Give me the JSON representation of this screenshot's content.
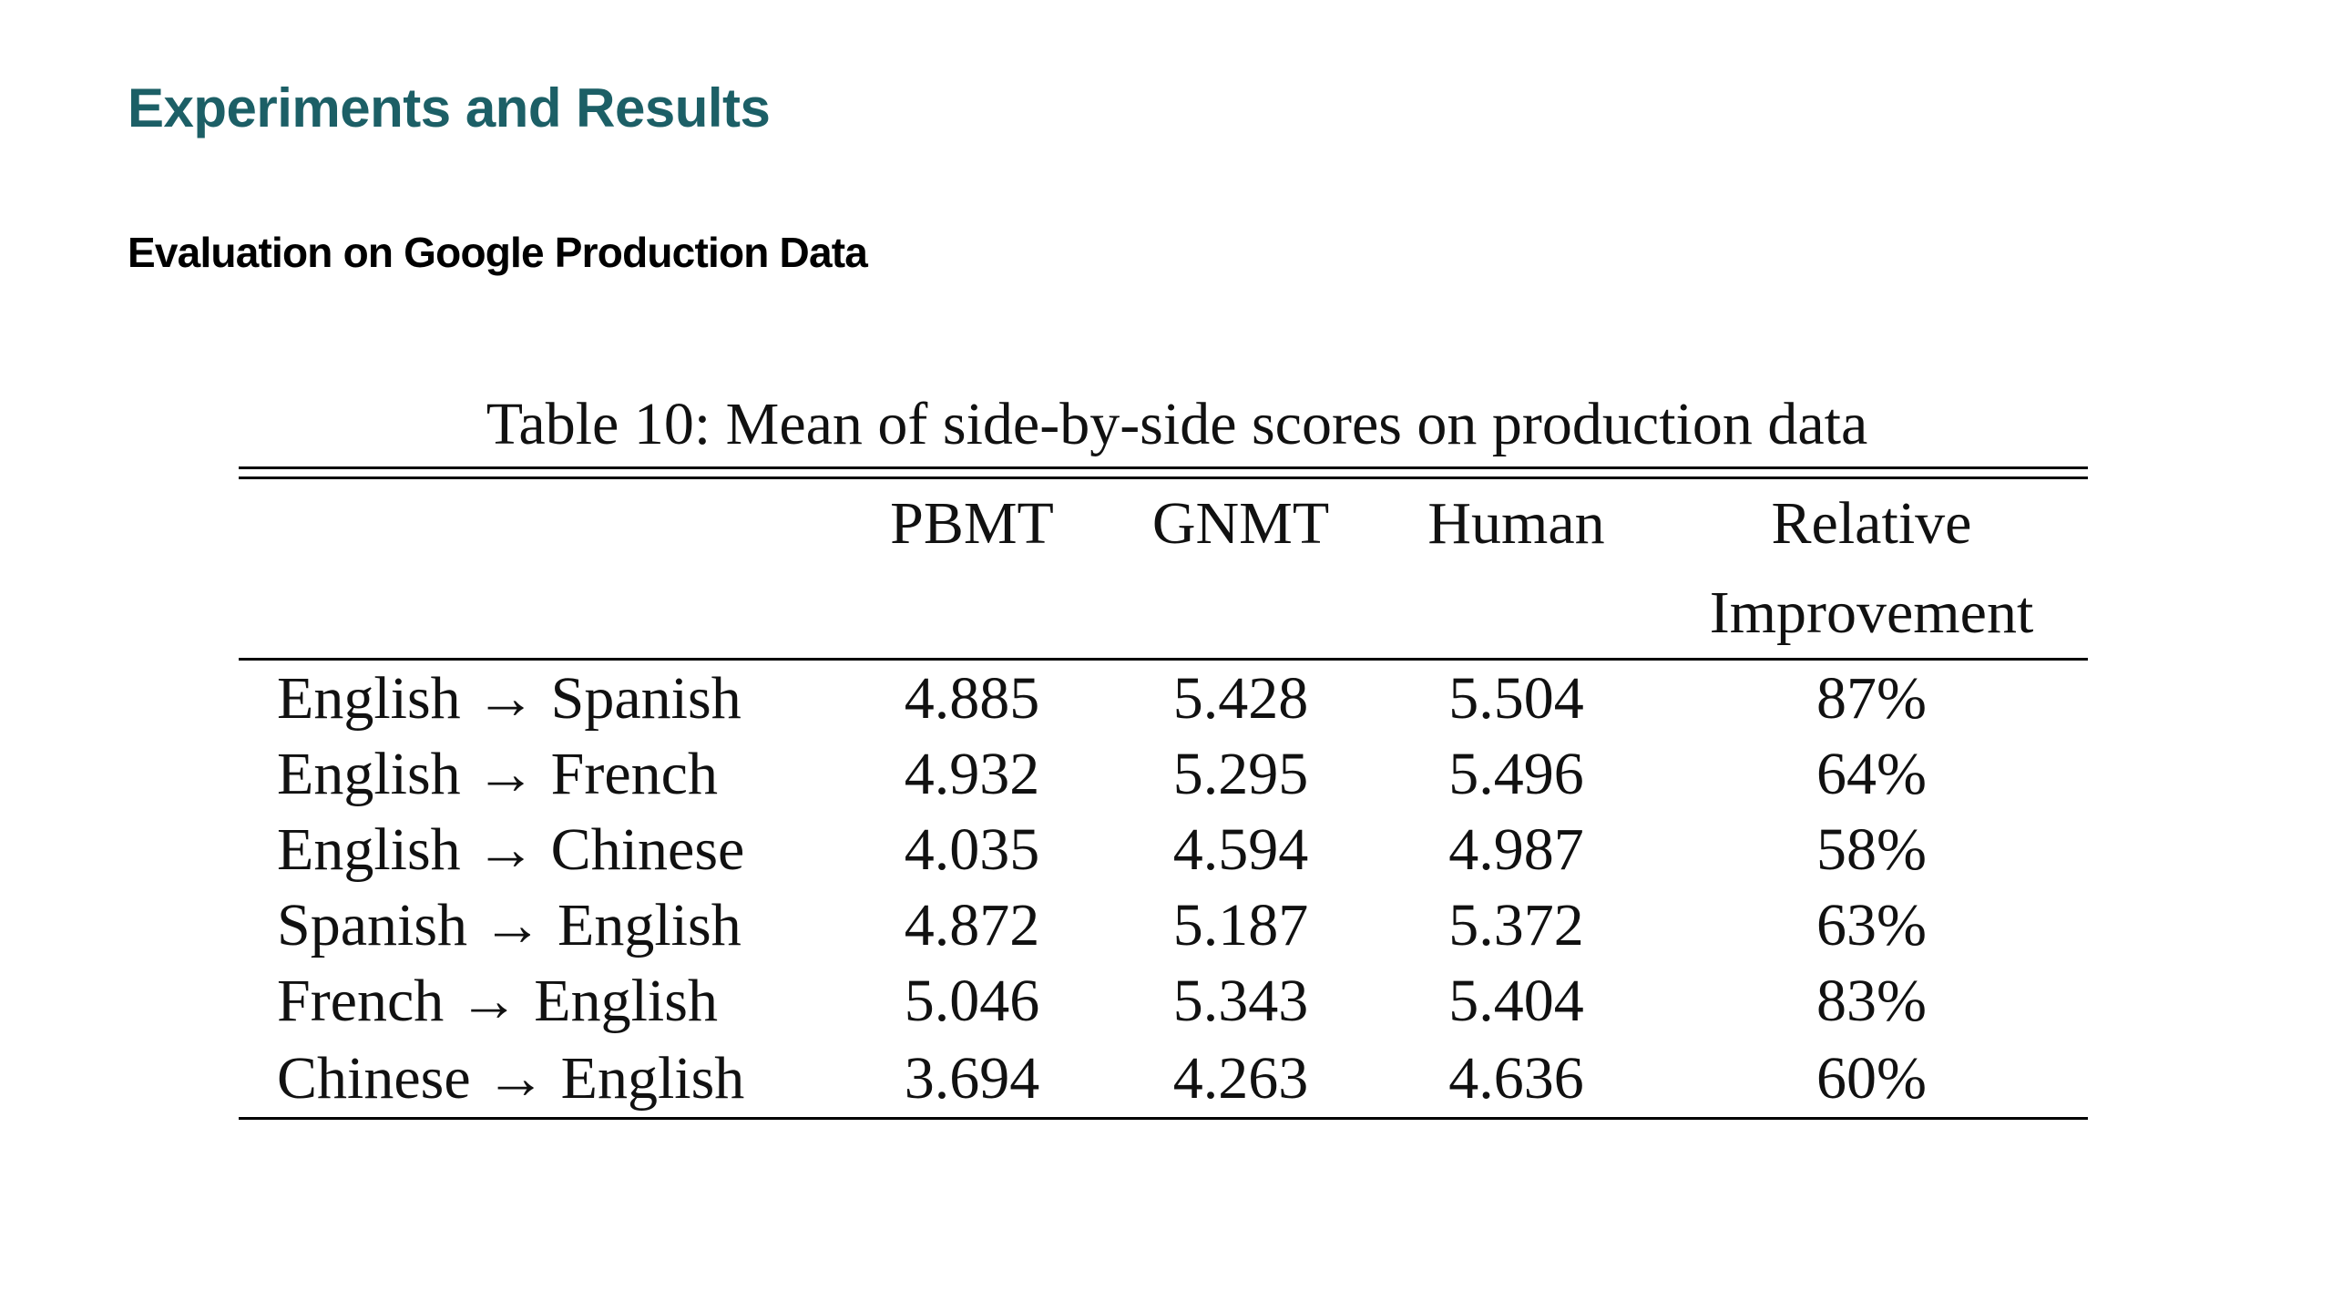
{
  "slide": {
    "title": "Experiments and Results",
    "subtitle": "Evaluation on Google Production Data"
  },
  "table": {
    "caption": "Table 10: Mean of side-by-side scores on production data",
    "headers": {
      "pbmt": "PBMT",
      "gnmt": "GNMT",
      "human": "Human",
      "relative_line1": "Relative",
      "relative_line2": "Improvement"
    },
    "rows": [
      {
        "pair": "English → Spanish",
        "pbmt": "4.885",
        "gnmt": "5.428",
        "human": "5.504",
        "relative": "87%"
      },
      {
        "pair": "English → French",
        "pbmt": "4.932",
        "gnmt": "5.295",
        "human": "5.496",
        "relative": "64%"
      },
      {
        "pair": "English → Chinese",
        "pbmt": "4.035",
        "gnmt": "4.594",
        "human": "4.987",
        "relative": "58%"
      },
      {
        "pair": "Spanish → English",
        "pbmt": "4.872",
        "gnmt": "5.187",
        "human": "5.372",
        "relative": "63%"
      },
      {
        "pair": "French → English",
        "pbmt": "5.046",
        "gnmt": "5.343",
        "human": "5.404",
        "relative": "83%"
      },
      {
        "pair": "Chinese → English",
        "pbmt": "3.694",
        "gnmt": "4.263",
        "human": "4.636",
        "relative": "60%"
      }
    ]
  },
  "colors": {
    "title": "#1c5f66",
    "text": "#111111",
    "rule": "#000000"
  }
}
